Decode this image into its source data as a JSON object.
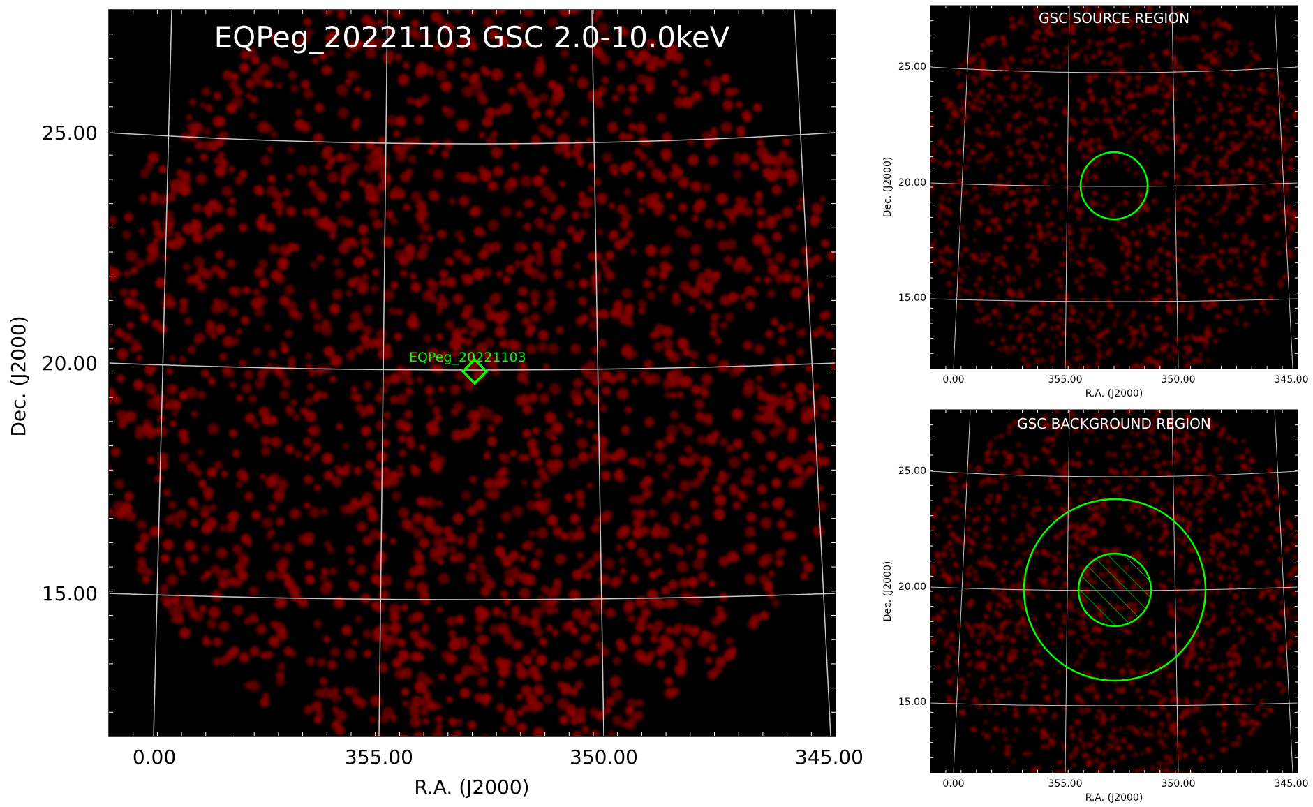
{
  "main_panel": {
    "title": "EQPeg_20221103 GSC 2.0-10.0keV",
    "ylabel": "Dec. (J2000)",
    "xlabel": "R.A. (J2000)",
    "y_ticks": [
      "25.00",
      "20.00",
      "15.00"
    ],
    "x_ticks": [
      "0.00",
      "355.00",
      "350.00",
      "345.00"
    ],
    "source_marker_label": "EQPeg_20221103"
  },
  "source_panel": {
    "title": "GSC SOURCE REGION",
    "ylabel": "Dec. (J2000)",
    "xlabel": "R.A. (J2000)",
    "y_ticks": [
      "25.00",
      "20.00",
      "15.00"
    ],
    "x_ticks": [
      "0.00",
      "355.00",
      "350.00",
      "345.00"
    ]
  },
  "background_panel": {
    "title": "GSC BACKGROUND REGION",
    "ylabel": "Dec. (J2000)",
    "xlabel": "R.A. (J2000)",
    "y_ticks": [
      "25.00",
      "20.00",
      "15.00"
    ],
    "x_ticks": [
      "0.00",
      "355.00",
      "350.00",
      "345.00"
    ]
  },
  "colors": {
    "sky_background": "#000000",
    "event_color": "#8b0000",
    "grid_color": "#c8c8c8",
    "region_color": "#00ff00"
  }
}
